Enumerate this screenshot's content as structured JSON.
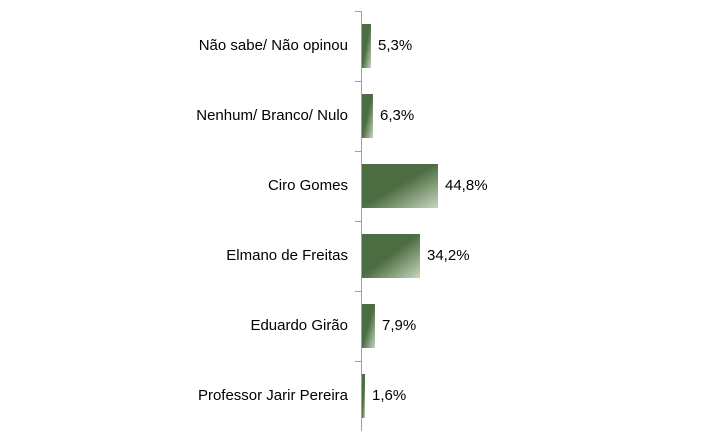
{
  "chart_data": {
    "type": "bar",
    "orientation": "horizontal",
    "title": "",
    "xlabel": "",
    "ylabel": "",
    "legend": "none",
    "grid": false,
    "xlim": [
      0,
      100
    ],
    "categories": [
      "Não sabe/ Não opinou",
      "Nenhum/ Branco/ Nulo",
      "Ciro Gomes",
      "Elmano de Freitas",
      "Eduardo Girão",
      "Professor Jarir Pereira"
    ],
    "values": [
      5.3,
      6.3,
      44.8,
      34.2,
      7.9,
      1.6
    ],
    "value_labels": [
      "5,3%",
      "6,3%",
      "44,8%",
      "34,2%",
      "7,9%",
      "1,6%"
    ]
  },
  "colors": {
    "bar_dark": "#4C6C41",
    "bar_light": "#C6D6BE",
    "axis": "#9AA0A4",
    "text": "#000000",
    "background": "#FFFFFF"
  }
}
